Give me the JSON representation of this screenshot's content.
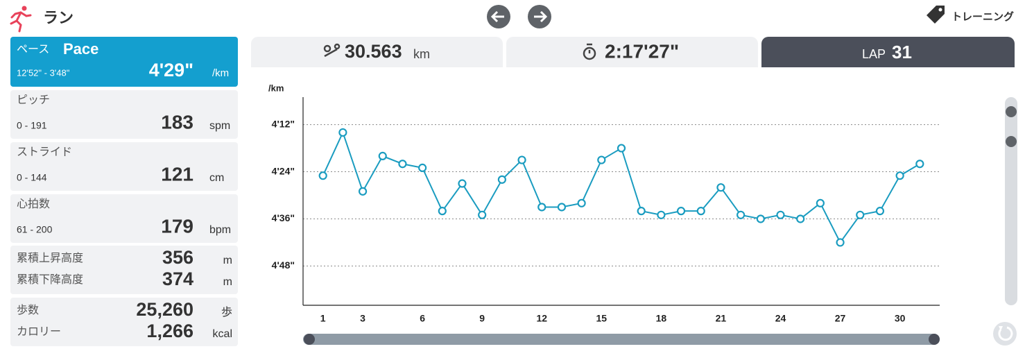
{
  "header": {
    "title": "ラン",
    "training": "トレーニング"
  },
  "pace": {
    "label_ja": "ペース",
    "label": "Pace",
    "range": "12'52\" - 3'48\"",
    "value": "4'29\"",
    "unit": "/km"
  },
  "metrics": [
    {
      "label": "ピッチ",
      "range": "0 - 191",
      "value": "183",
      "unit": "spm"
    },
    {
      "label": "ストライド",
      "range": "0 - 144",
      "value": "121",
      "unit": "cm"
    },
    {
      "label": "心拍数",
      "range": "61 - 200",
      "value": "179",
      "unit": "bpm"
    }
  ],
  "elevation": [
    {
      "label": "累積上昇高度",
      "value": "356",
      "unit": "m"
    },
    {
      "label": "累積下降高度",
      "value": "374",
      "unit": "m"
    }
  ],
  "activity": [
    {
      "label": "歩数",
      "value": "25,260",
      "unit": "歩"
    },
    {
      "label": "カロリー",
      "value": "1,266",
      "unit": "kcal"
    }
  ],
  "tabs": {
    "distance": "30.563",
    "distance_unit": "km",
    "time": "2:17'27\"",
    "lap_label": "LAP",
    "lap": "31"
  },
  "chart_data": {
    "type": "line",
    "y_label": "/km",
    "x": [
      1,
      2,
      3,
      4,
      5,
      6,
      7,
      8,
      9,
      10,
      11,
      12,
      13,
      14,
      15,
      16,
      17,
      18,
      19,
      20,
      21,
      22,
      23,
      24,
      25,
      26,
      27,
      28,
      29,
      30,
      31
    ],
    "values": [
      265,
      254,
      269,
      260,
      262,
      263,
      274,
      267,
      275,
      266,
      261,
      273,
      273,
      272,
      261,
      258,
      274,
      275,
      274,
      274,
      268,
      275,
      276,
      275,
      276,
      272,
      282,
      275,
      274,
      265,
      262
    ],
    "color": "#1a9cc0",
    "xlim": [
      0,
      32
    ],
    "xticks": [
      1,
      3,
      6,
      9,
      12,
      15,
      18,
      21,
      24,
      27,
      30
    ],
    "ylim": [
      298,
      245
    ],
    "yticks": [
      {
        "value": 252,
        "label": "4'12\""
      },
      {
        "value": 264,
        "label": "4'24\""
      },
      {
        "value": 276,
        "label": "4'36\""
      },
      {
        "value": 288,
        "label": "4'48\""
      }
    ],
    "grid": true
  }
}
